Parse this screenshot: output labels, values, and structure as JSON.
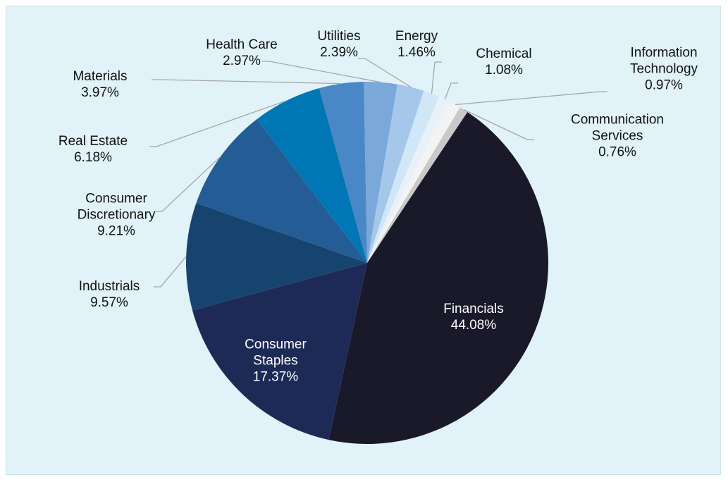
{
  "chart_data": {
    "type": "pie",
    "categories": [
      "Financials",
      "Consumer Staples",
      "Industrials",
      "Consumer Discretionary",
      "Real Estate",
      "Materials",
      "Health Care",
      "Utilities",
      "Energy",
      "Chemical",
      "Information Technology",
      "Communication Services"
    ],
    "values": [
      44.08,
      17.37,
      9.57,
      9.21,
      6.18,
      3.97,
      2.97,
      2.39,
      1.46,
      1.08,
      0.97,
      0.76
    ],
    "value_labels": [
      "44.08%",
      "17.37%",
      "9.57%",
      "9.21%",
      "6.18%",
      "3.97%",
      "2.97%",
      "2.39%",
      "1.46%",
      "1.08%",
      "0.97%",
      "0.76%"
    ],
    "colors": [
      "#19192a",
      "#1e2a56",
      "#17446f",
      "#245c95",
      "#0077b4",
      "#4a87c6",
      "#79a8d9",
      "#a5c7ea",
      "#d0e7f8",
      "#e8f1f7",
      "#f3f3f3",
      "#c9c9c9"
    ]
  }
}
